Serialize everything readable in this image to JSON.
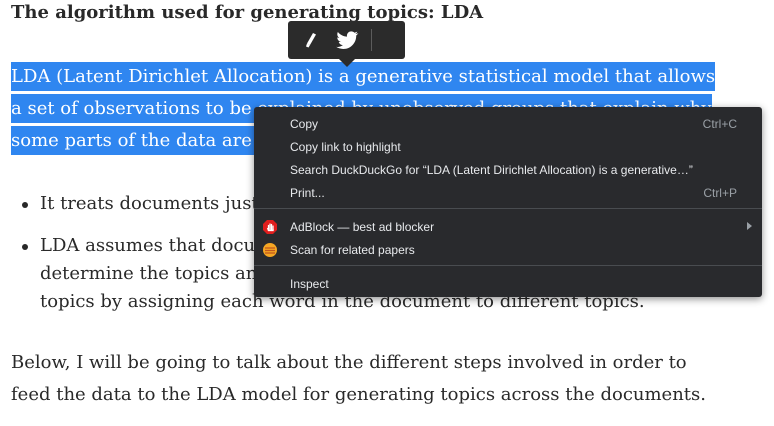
{
  "article": {
    "heading": "The algorithm used for generating topics: LDA",
    "highlight_lines": [
      "LDA (Latent Dirichlet Allocation) is a generative statistical model that allows",
      "a set of observations to be explained by unobserved groups that explain why",
      "some parts of the data are s"
    ],
    "bullets": [
      "It treats documents just",
      "LDA assumes that docun",
      "determine the topics and",
      "topics by assigning each word in the document to different topics."
    ],
    "closing_lines": [
      "Below, I will be going to talk about the different steps involved in order to",
      "feed the data to the LDA model for generating topics across the documents."
    ]
  },
  "toolbar": {
    "highlight_icon": "highlighter-icon",
    "share_icon": "twitter-icon"
  },
  "context_menu": {
    "copy": {
      "label": "Copy",
      "shortcut": "Ctrl+C"
    },
    "copy_link": {
      "label": "Copy link to highlight"
    },
    "search": {
      "label": "Search DuckDuckGo for “LDA (Latent Dirichlet Allocation) is a generative…”"
    },
    "print": {
      "label": "Print...",
      "shortcut": "Ctrl+P"
    },
    "adblock": {
      "label": "AdBlock — best ad blocker",
      "icon": "adblock-hand-icon",
      "color": "#e01e1e"
    },
    "scan": {
      "label": "Scan for related papers",
      "icon": "scan-papers-icon",
      "color": "#f5a623"
    },
    "inspect": {
      "label": "Inspect"
    }
  }
}
